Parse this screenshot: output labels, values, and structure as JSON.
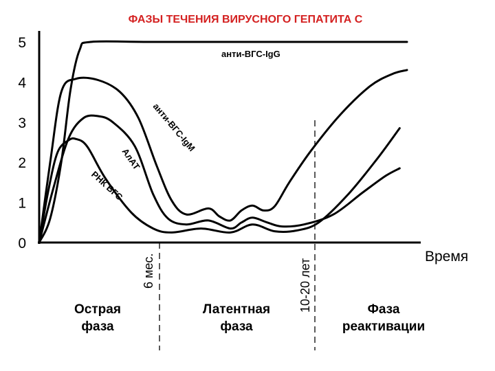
{
  "chart_data": {
    "type": "line",
    "title": "ФАЗЫ ТЕЧЕНИЯ ВИРУСНОГО ГЕПАТИТА С",
    "title_color": "#d42020",
    "xlabel": "Время",
    "ylabel": "",
    "ylim": [
      0,
      5
    ],
    "yticks": [
      "0",
      "1",
      "2",
      "3",
      "4",
      "5"
    ],
    "grid": false,
    "markers": [
      {
        "label": "6 мес."
      },
      {
        "label": "10-20 лет"
      }
    ],
    "phases": [
      {
        "line1": "Острая",
        "line2": "фаза"
      },
      {
        "line1": "Латентная",
        "line2": "фаза"
      },
      {
        "line1": "Фаза",
        "line2": "реактивации"
      }
    ],
    "series": [
      {
        "name": "анти-ВГС-IgG",
        "points": [
          [
            0.0,
            0.0
          ],
          [
            0.03,
            0.6
          ],
          [
            0.06,
            2.0
          ],
          [
            0.085,
            3.8
          ],
          [
            0.11,
            4.8
          ],
          [
            0.14,
            5.0
          ],
          [
            0.3,
            5.0
          ],
          [
            0.6,
            5.0
          ],
          [
            1.0,
            5.0
          ]
        ]
      },
      {
        "name": "анти-ВГС-IgM",
        "points": [
          [
            0.0,
            0.0
          ],
          [
            0.03,
            2.0
          ],
          [
            0.06,
            3.75
          ],
          [
            0.1,
            4.08
          ],
          [
            0.16,
            4.05
          ],
          [
            0.22,
            3.75
          ],
          [
            0.27,
            3.1
          ],
          [
            0.32,
            1.9
          ],
          [
            0.36,
            1.05
          ],
          [
            0.4,
            0.7
          ],
          [
            0.46,
            0.85
          ],
          [
            0.49,
            0.65
          ],
          [
            0.52,
            0.55
          ],
          [
            0.55,
            0.8
          ],
          [
            0.58,
            0.92
          ],
          [
            0.61,
            0.8
          ],
          [
            0.64,
            0.9
          ],
          [
            0.68,
            1.5
          ],
          [
            0.74,
            2.3
          ],
          [
            0.82,
            3.2
          ],
          [
            0.9,
            3.9
          ],
          [
            0.96,
            4.2
          ],
          [
            1.0,
            4.3
          ]
        ]
      },
      {
        "name": "АлАТ",
        "points": [
          [
            0.0,
            0.0
          ],
          [
            0.04,
            1.4
          ],
          [
            0.08,
            2.6
          ],
          [
            0.12,
            3.1
          ],
          [
            0.16,
            3.15
          ],
          [
            0.2,
            3.0
          ],
          [
            0.26,
            2.4
          ],
          [
            0.31,
            1.2
          ],
          [
            0.35,
            0.6
          ],
          [
            0.4,
            0.45
          ],
          [
            0.46,
            0.55
          ],
          [
            0.52,
            0.35
          ],
          [
            0.55,
            0.5
          ],
          [
            0.58,
            0.62
          ],
          [
            0.62,
            0.5
          ],
          [
            0.66,
            0.4
          ],
          [
            0.72,
            0.45
          ],
          [
            0.8,
            0.7
          ],
          [
            0.88,
            1.25
          ],
          [
            0.94,
            1.65
          ],
          [
            0.98,
            1.85
          ]
        ]
      },
      {
        "name": "РНК ВГС",
        "points": [
          [
            0.0,
            0.0
          ],
          [
            0.025,
            1.3
          ],
          [
            0.05,
            2.25
          ],
          [
            0.08,
            2.55
          ],
          [
            0.1,
            2.58
          ],
          [
            0.13,
            2.4
          ],
          [
            0.18,
            1.6
          ],
          [
            0.25,
            0.75
          ],
          [
            0.31,
            0.35
          ],
          [
            0.36,
            0.25
          ],
          [
            0.44,
            0.35
          ],
          [
            0.52,
            0.25
          ],
          [
            0.58,
            0.45
          ],
          [
            0.64,
            0.28
          ],
          [
            0.7,
            0.3
          ],
          [
            0.76,
            0.5
          ],
          [
            0.84,
            1.2
          ],
          [
            0.92,
            2.1
          ],
          [
            0.98,
            2.85
          ]
        ]
      }
    ]
  }
}
